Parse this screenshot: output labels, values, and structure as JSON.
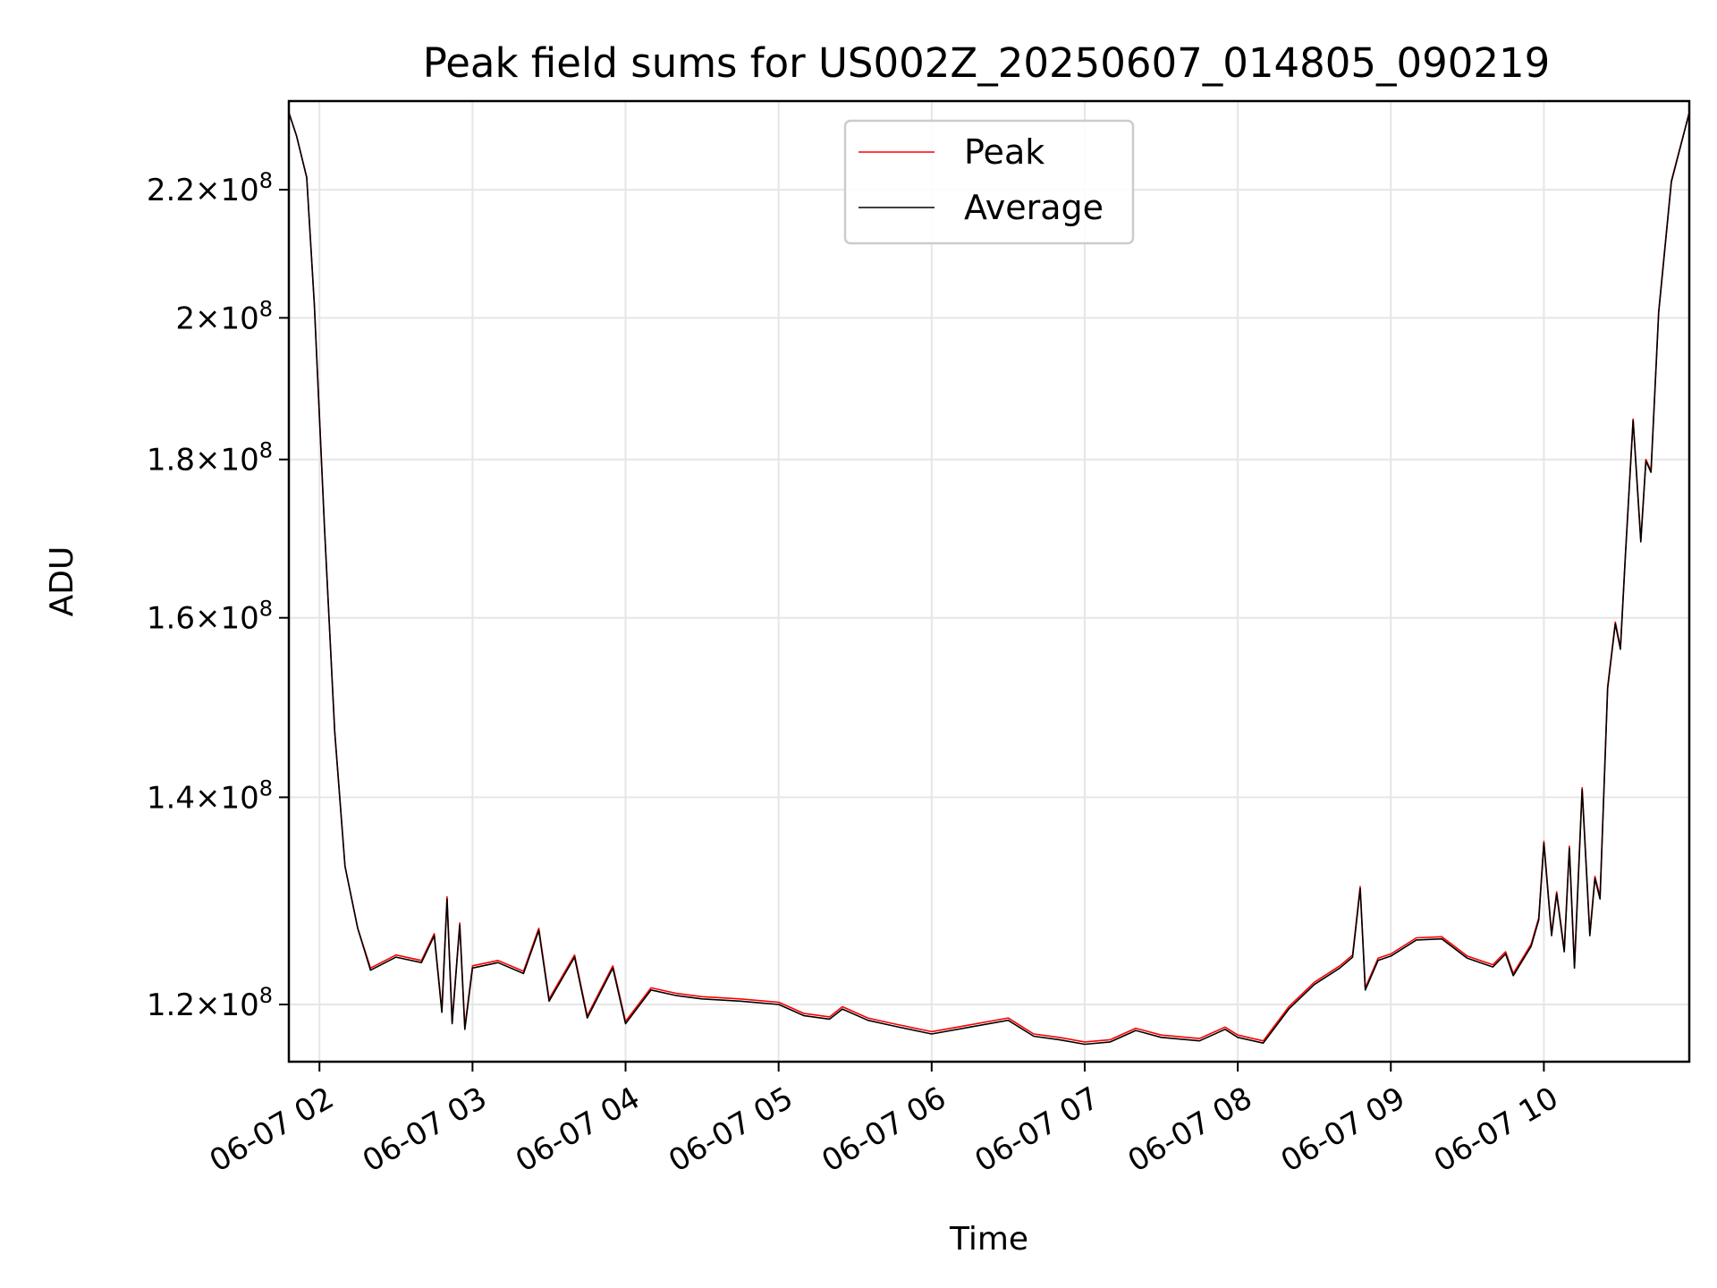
{
  "chart_data": {
    "type": "line",
    "title": "Peak field sums for US002Z_20250607_014805_090219",
    "xlabel": "Time",
    "ylabel": "ADU",
    "scale": {
      "y": "log"
    },
    "xlim": [
      "2025-06-07 01:48",
      "2025-06-07 10:57"
    ],
    "ylim": [
      115000000,
      235000000
    ],
    "grid": true,
    "legend_position": "top-center",
    "x_ticks": [
      "06-07 02",
      "06-07 03",
      "06-07 04",
      "06-07 05",
      "06-07 06",
      "06-07 07",
      "06-07 08",
      "06-07 09",
      "06-07 10"
    ],
    "y_ticks": [
      {
        "value": 120000000,
        "mant": "1.2",
        "exp": "8"
      },
      {
        "value": 140000000,
        "mant": "1.4",
        "exp": "8"
      },
      {
        "value": 160000000,
        "mant": "1.6",
        "exp": "8"
      },
      {
        "value": 180000000,
        "mant": "1.8",
        "exp": "8"
      },
      {
        "value": 200000000,
        "mant": "2",
        "exp": "8"
      },
      {
        "value": 220000000,
        "mant": "2.2",
        "exp": "8"
      }
    ],
    "x": [
      "2025-06-07 01:48",
      "2025-06-07 01:51",
      "2025-06-07 01:55",
      "2025-06-07 01:58",
      "2025-06-07 02:02",
      "2025-06-07 02:06",
      "2025-06-07 02:10",
      "2025-06-07 02:15",
      "2025-06-07 02:20",
      "2025-06-07 02:30",
      "2025-06-07 02:40",
      "2025-06-07 02:45",
      "2025-06-07 02:48",
      "2025-06-07 02:50",
      "2025-06-07 02:52",
      "2025-06-07 02:55",
      "2025-06-07 02:57",
      "2025-06-07 03:00",
      "2025-06-07 03:10",
      "2025-06-07 03:20",
      "2025-06-07 03:26",
      "2025-06-07 03:30",
      "2025-06-07 03:40",
      "2025-06-07 03:45",
      "2025-06-07 03:55",
      "2025-06-07 04:00",
      "2025-06-07 04:10",
      "2025-06-07 04:20",
      "2025-06-07 04:30",
      "2025-06-07 04:45",
      "2025-06-07 05:00",
      "2025-06-07 05:10",
      "2025-06-07 05:20",
      "2025-06-07 05:25",
      "2025-06-07 05:35",
      "2025-06-07 05:45",
      "2025-06-07 06:00",
      "2025-06-07 06:15",
      "2025-06-07 06:30",
      "2025-06-07 06:40",
      "2025-06-07 06:50",
      "2025-06-07 07:00",
      "2025-06-07 07:10",
      "2025-06-07 07:20",
      "2025-06-07 07:30",
      "2025-06-07 07:45",
      "2025-06-07 07:55",
      "2025-06-07 08:00",
      "2025-06-07 08:10",
      "2025-06-07 08:20",
      "2025-06-07 08:30",
      "2025-06-07 08:40",
      "2025-06-07 08:45",
      "2025-06-07 08:48",
      "2025-06-07 08:50",
      "2025-06-07 08:55",
      "2025-06-07 09:00",
      "2025-06-07 09:10",
      "2025-06-07 09:20",
      "2025-06-07 09:30",
      "2025-06-07 09:40",
      "2025-06-07 09:45",
      "2025-06-07 09:48",
      "2025-06-07 09:55",
      "2025-06-07 09:58",
      "2025-06-07 10:00",
      "2025-06-07 10:03",
      "2025-06-07 10:05",
      "2025-06-07 10:08",
      "2025-06-07 10:10",
      "2025-06-07 10:12",
      "2025-06-07 10:15",
      "2025-06-07 10:18",
      "2025-06-07 10:20",
      "2025-06-07 10:22",
      "2025-06-07 10:25",
      "2025-06-07 10:28",
      "2025-06-07 10:30",
      "2025-06-07 10:32",
      "2025-06-07 10:35",
      "2025-06-07 10:38",
      "2025-06-07 10:40",
      "2025-06-07 10:42",
      "2025-06-07 10:45",
      "2025-06-07 10:50",
      "2025-06-07 10:57"
    ],
    "series": [
      {
        "name": "Peak",
        "color": "#ff0000",
        "values": [
          233000000,
          229000000,
          222000000,
          202000000,
          171000000,
          147000000,
          133000000,
          127000000,
          123300000,
          124500000,
          124000000,
          126500000,
          119500000,
          130000000,
          118500000,
          127500000,
          118000000,
          123500000,
          124000000,
          123000000,
          127000000,
          120500000,
          124500000,
          119000000,
          123500000,
          118500000,
          121500000,
          121000000,
          120700000,
          120500000,
          120200000,
          119200000,
          118900000,
          119800000,
          118800000,
          118300000,
          117600000,
          118200000,
          118800000,
          117400000,
          117100000,
          116700000,
          116900000,
          117900000,
          117300000,
          117000000,
          118000000,
          117300000,
          116800000,
          119800000,
          122000000,
          123500000,
          124500000,
          131000000,
          121500000,
          124200000,
          124600000,
          126100000,
          126200000,
          124400000,
          123600000,
          124800000,
          122800000,
          125500000,
          128000000,
          135500000,
          126500000,
          130500000,
          125000000,
          135000000,
          123500000,
          141000000,
          126500000,
          132000000,
          130000000,
          152000000,
          159500000,
          156500000,
          168000000,
          185500000,
          169500000,
          180000000,
          178500000,
          201000000,
          221500000,
          233000000
        ]
      },
      {
        "name": "Average",
        "color": "#000000",
        "values": [
          233000000,
          229000000,
          222000000,
          202000000,
          171000000,
          147000000,
          133000000,
          127000000,
          123100000,
          124300000,
          123800000,
          126300000,
          119300000,
          129800000,
          118300000,
          127300000,
          117800000,
          123300000,
          123800000,
          122800000,
          126800000,
          120300000,
          124300000,
          118800000,
          123300000,
          118300000,
          121300000,
          120800000,
          120500000,
          120300000,
          120000000,
          119000000,
          118700000,
          119600000,
          118600000,
          118100000,
          117400000,
          118000000,
          118600000,
          117200000,
          116900000,
          116500000,
          116700000,
          117700000,
          117100000,
          116800000,
          117800000,
          117100000,
          116600000,
          119600000,
          121800000,
          123300000,
          124300000,
          130800000,
          121300000,
          124000000,
          124400000,
          125900000,
          126000000,
          124200000,
          123400000,
          124600000,
          122600000,
          125300000,
          127800000,
          135300000,
          126300000,
          130300000,
          124800000,
          134800000,
          123300000,
          140800000,
          126300000,
          131800000,
          129800000,
          151800000,
          159300000,
          156300000,
          167800000,
          185300000,
          169300000,
          179800000,
          178300000,
          200800000,
          221300000,
          233000000
        ]
      }
    ]
  }
}
